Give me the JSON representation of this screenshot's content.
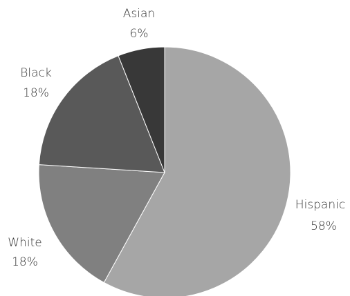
{
  "chart_data": {
    "type": "pie",
    "start_angle_deg": 0,
    "direction": "clockwise",
    "slices": [
      {
        "label": "Hispanic",
        "value": 58,
        "value_label": "58%",
        "color": "#a6a6a6"
      },
      {
        "label": "White",
        "value": 18,
        "value_label": "18%",
        "color": "#808080"
      },
      {
        "label": "Black",
        "value": 18,
        "value_label": "18%",
        "color": "#595959"
      },
      {
        "label": "Asian",
        "value": 6,
        "value_label": "6%",
        "color": "#383838"
      }
    ]
  }
}
